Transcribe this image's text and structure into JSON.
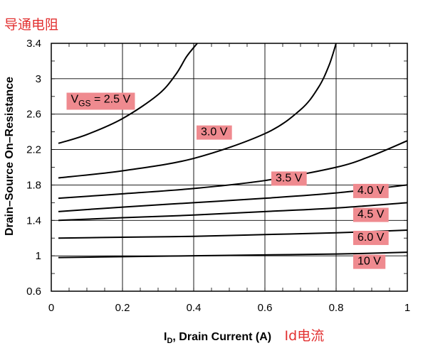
{
  "annotation_top": "导通电阻",
  "annotation_x": "Id电流",
  "chart_data": {
    "type": "line",
    "title": "",
    "xlabel_main": "I",
    "xlabel_sub": "D",
    "xlabel_rest": ", Drain Current (A)",
    "ylabel": "Drain–Source On–Resistance",
    "xlim": [
      0,
      1
    ],
    "ylim": [
      0.6,
      3.4
    ],
    "xticks": [
      "0",
      "0.2",
      "0.4",
      "0.6",
      "0.8",
      "1"
    ],
    "yticks": [
      "0.6",
      "1",
      "1.4",
      "1.8",
      "2.2",
      "2.6",
      "3",
      "3.4"
    ],
    "ytick_values": [
      0.6,
      1,
      1.4,
      1.8,
      2.2,
      2.6,
      3,
      3.4
    ],
    "xtick_values": [
      0,
      0.2,
      0.4,
      0.6,
      0.8,
      1
    ],
    "grid": true,
    "series": [
      {
        "name": "VGS = 2.5 V",
        "x": [
          0.02,
          0.1,
          0.2,
          0.3,
          0.35,
          0.38,
          0.41
        ],
        "y": [
          2.27,
          2.37,
          2.55,
          2.82,
          3.05,
          3.25,
          3.4
        ]
      },
      {
        "name": "3.0 V",
        "x": [
          0.02,
          0.2,
          0.4,
          0.6,
          0.7,
          0.75,
          0.78,
          0.8
        ],
        "y": [
          1.88,
          1.96,
          2.1,
          2.38,
          2.65,
          2.9,
          3.15,
          3.4
        ]
      },
      {
        "name": "3.5 V",
        "x": [
          0.02,
          0.2,
          0.4,
          0.6,
          0.8,
          0.9,
          1.0
        ],
        "y": [
          1.65,
          1.7,
          1.76,
          1.85,
          2.0,
          2.13,
          2.3
        ]
      },
      {
        "name": "4.0 V",
        "x": [
          0.02,
          0.2,
          0.4,
          0.6,
          0.8,
          1.0
        ],
        "y": [
          1.5,
          1.55,
          1.6,
          1.65,
          1.71,
          1.8
        ]
      },
      {
        "name": "4.5 V",
        "x": [
          0.02,
          0.2,
          0.4,
          0.6,
          0.8,
          1.0
        ],
        "y": [
          1.4,
          1.43,
          1.46,
          1.5,
          1.54,
          1.6
        ]
      },
      {
        "name": "6.0 V",
        "x": [
          0.02,
          0.2,
          0.4,
          0.6,
          0.8,
          1.0
        ],
        "y": [
          1.2,
          1.21,
          1.22,
          1.24,
          1.26,
          1.29
        ]
      },
      {
        "name": "10 V",
        "x": [
          0.02,
          0.2,
          0.4,
          0.6,
          0.8,
          1.0
        ],
        "y": [
          0.98,
          0.99,
          1.0,
          1.01,
          1.02,
          1.04
        ]
      }
    ],
    "labels": [
      {
        "parts": [
          "V",
          "GS",
          " = 2.5 V"
        ],
        "x": 0.055,
        "y": 2.73
      },
      {
        "parts": [
          "3.0 V"
        ],
        "x": 0.42,
        "y": 2.36
      },
      {
        "parts": [
          "3.5 V"
        ],
        "x": 0.63,
        "y": 1.84
      },
      {
        "parts": [
          "4.0 V"
        ],
        "x": 0.86,
        "y": 1.7
      },
      {
        "parts": [
          "4.5 V"
        ],
        "x": 0.86,
        "y": 1.43
      },
      {
        "parts": [
          "6.0 V"
        ],
        "x": 0.86,
        "y": 1.17
      },
      {
        "parts": [
          "10 V"
        ],
        "x": 0.86,
        "y": 0.9
      }
    ],
    "label_bg": "#ef8a8f",
    "line_color": "#000000"
  }
}
